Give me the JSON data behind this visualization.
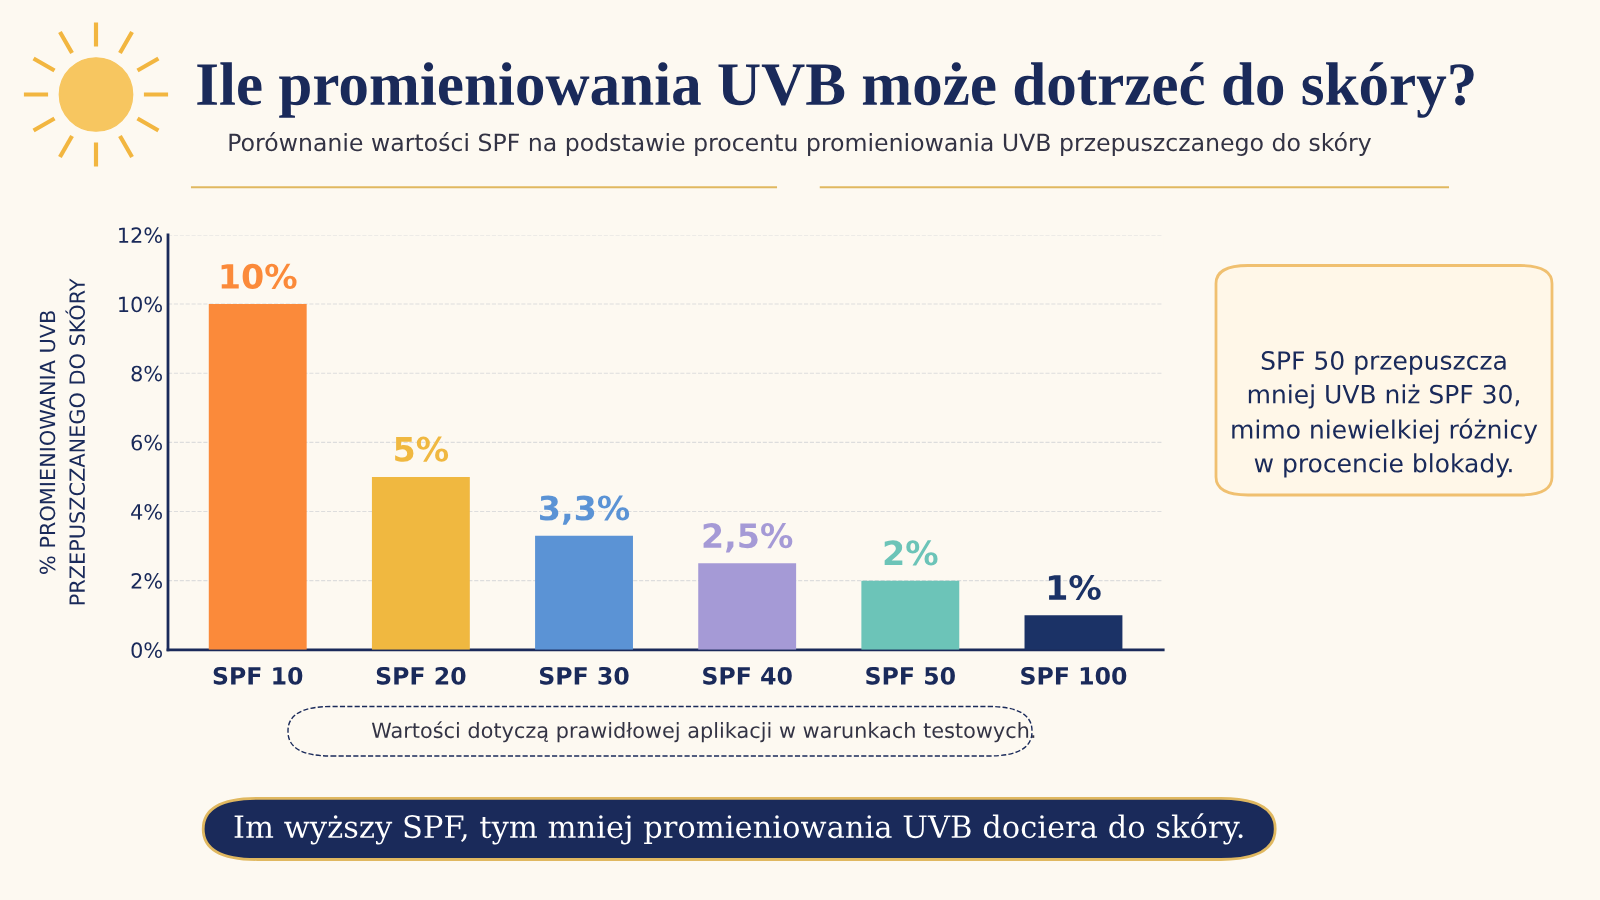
{
  "chart_data": {
    "type": "bar",
    "title": "Ile promieniowania UVB może dotrzeć do skóry?",
    "subtitle": "Porównanie wartości SPF na podstawie procentu promieniowania UVB przepuszczanego do skóry",
    "ylabel": "% PROMIENIOWANIA UVB\nPRZEPUSZCZANEGO DO SKÓRY",
    "categories": [
      "SPF 10",
      "SPF 20",
      "SPF 30",
      "SPF 40",
      "SPF 50",
      "SPF 100"
    ],
    "values": [
      10,
      5,
      3.3,
      2.5,
      2,
      1
    ],
    "value_labels": [
      "10%",
      "5%",
      "3,3%",
      "2,5%",
      "2%",
      "1%"
    ],
    "colors": [
      "#fb8a3a",
      "#f0b840",
      "#5b93d5",
      "#a59ad6",
      "#6cc4b8",
      "#1b3266"
    ],
    "ylim": [
      0,
      12
    ],
    "yticks": [
      {
        "value": 0,
        "label": "0%"
      },
      {
        "value": 2,
        "label": "2%"
      },
      {
        "value": 4,
        "label": "4%"
      },
      {
        "value": 6,
        "label": "6%"
      },
      {
        "value": 8,
        "label": "8%"
      },
      {
        "value": 10,
        "label": "10%"
      },
      {
        "value": 12,
        "label": "12%"
      }
    ],
    "grid": "y",
    "annotations": [
      "SPF 50 przepuszcza\nmniej UVB niż SPF 30,\nmimo niewielkiej różnicy\nw procencie blokady.",
      "Wartości dotyczą prawidłowej aplikacji w warunkach testowych.",
      "Im wyższy SPF, tym mniej promieniowania UVB dociera do skóry."
    ]
  }
}
